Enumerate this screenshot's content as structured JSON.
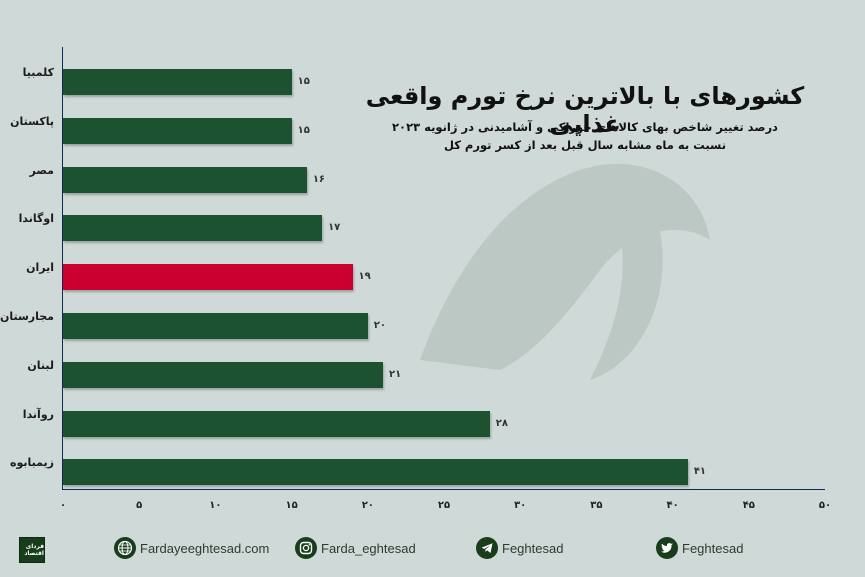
{
  "header": {
    "title": "کشورهای با بالاترین نرخ تورم واقعی غذایی",
    "subtitle_line1": "درصد تغییر شاخص بهای کالاهای خوراکی و آشامیدنی در ژانویه ۲۰۲۳",
    "subtitle_line2": "نسبت به ماه مشابه سال قبل بعد از کسر تورم کل"
  },
  "colors": {
    "bar_default": "#1c5230",
    "bar_highlight": "#cc0030",
    "background": "#cfd9d7",
    "axis": "#0e2a5c"
  },
  "chart_data": {
    "type": "bar",
    "orientation": "horizontal",
    "title": "کشورهای با بالاترین نرخ تورم واقعی غذایی",
    "subtitle": "درصد تغییر شاخص بهای کالاهای خوراکی و آشامیدنی در ژانویه ۲۰۲۳ نسبت به ماه مشابه سال قبل بعد از کسر تورم کل",
    "categories": [
      "کلمبیا",
      "پاکستان",
      "مصر",
      "اوگاندا",
      "ایران",
      "مجارستان",
      "لبنان",
      "روآندا",
      "زیمبابوه"
    ],
    "values": [
      15,
      15,
      16,
      17,
      19,
      20,
      21,
      28,
      41
    ],
    "value_labels": [
      "۱۵",
      "۱۵",
      "۱۶",
      "۱۷",
      "۱۹",
      "۲۰",
      "۲۱",
      "۲۸",
      "۴۱"
    ],
    "highlight": "ایران",
    "xlabel": "",
    "ylabel": "",
    "xlim": [
      0,
      50
    ],
    "x_ticks": [
      0,
      5,
      10,
      15,
      20,
      25,
      30,
      35,
      40,
      45,
      50
    ],
    "x_tick_labels": [
      "۰",
      "۵",
      "۱۰",
      "۱۵",
      "۲۰",
      "۲۵",
      "۳۰",
      "۳۵",
      "۴۰",
      "۴۵",
      "۵۰"
    ],
    "grid": false,
    "legend": null
  },
  "footer": {
    "logo_text": "فردای اقتصاد",
    "website": "Fardayeeghtesad.com",
    "instagram": "Farda_eghtesad",
    "telegram": "Feghtesad",
    "twitter": "Feghtesad"
  }
}
